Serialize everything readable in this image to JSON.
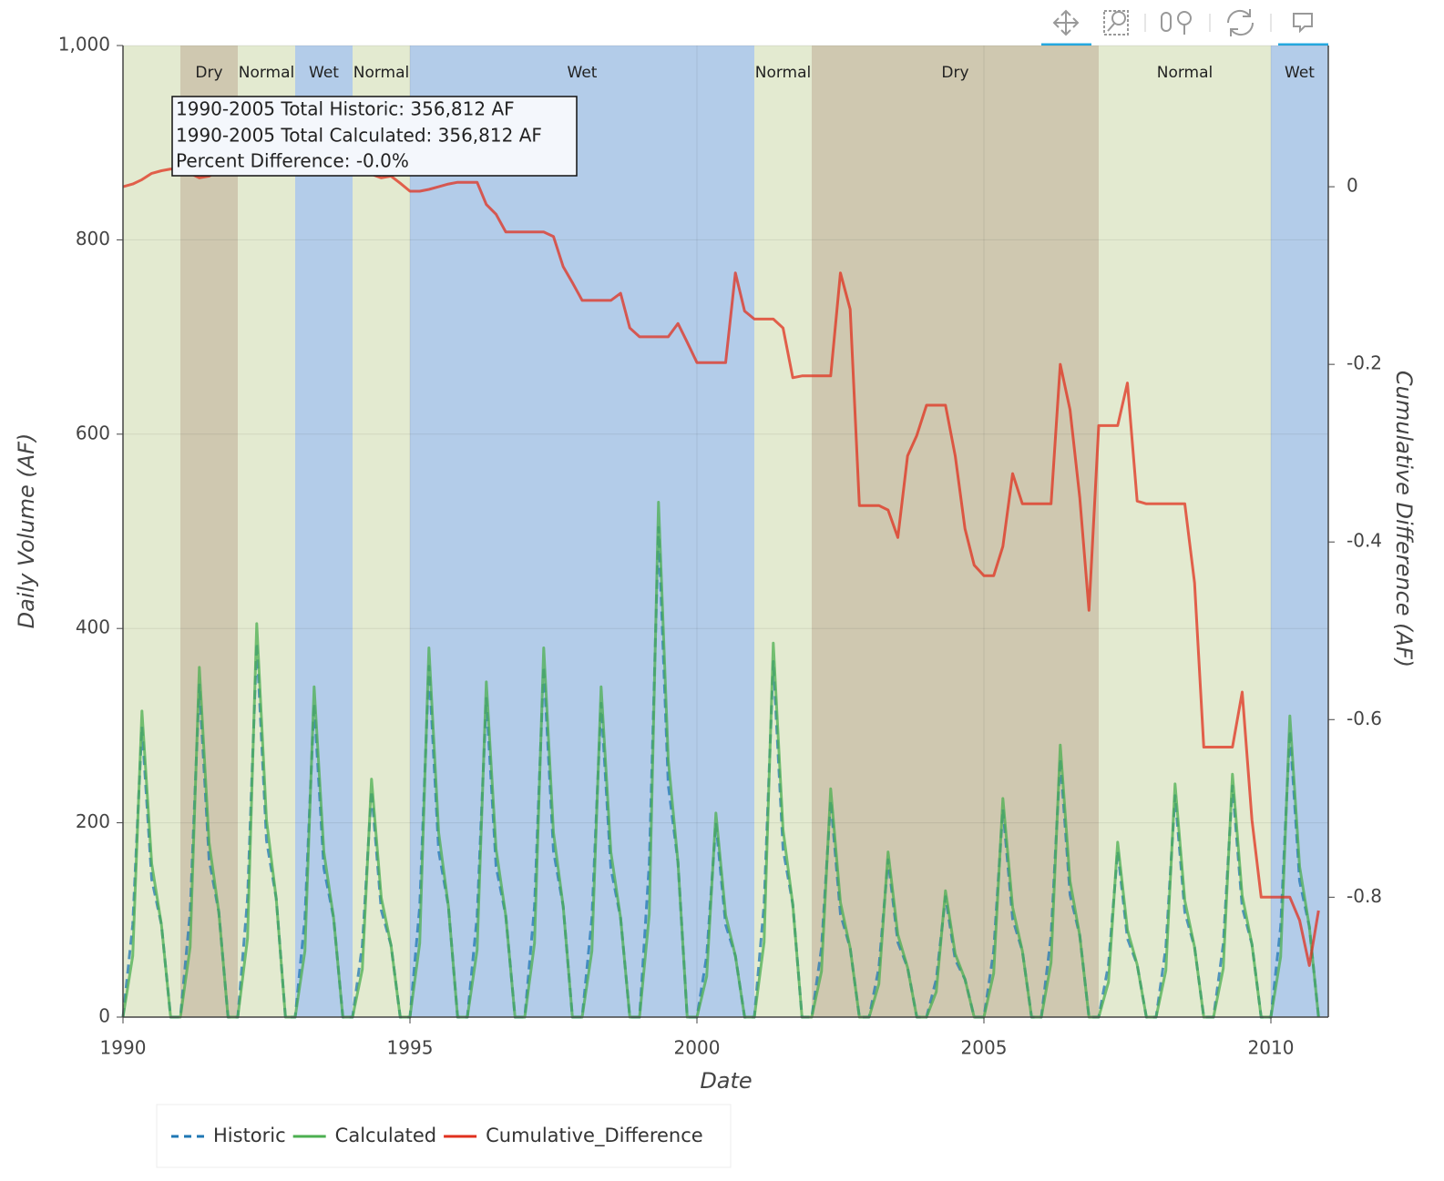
{
  "chart_data": {
    "type": "line",
    "xlabel": "Date",
    "ylabel": "Daily Volume (AF)",
    "y2label": "Cumulative Difference (AF)",
    "annotation": [
      "1990-2005 Total Historic: 356,812 AF",
      "1990-2005 Total Calculated: 356,812 AF",
      "Percent Difference: -0.0%"
    ],
    "bands": [
      {
        "x0": 1990,
        "x1": 1991,
        "label": null,
        "color": "#e3ead0"
      },
      {
        "x0": 1991,
        "x1": 1992,
        "label": "Dry",
        "color": "#cfc8b0"
      },
      {
        "x0": 1992,
        "x1": 1993,
        "label": "Normal",
        "color": "#e3ead0"
      },
      {
        "x0": 1993,
        "x1": 1994,
        "label": "Wet",
        "color": "#b3cce9"
      },
      {
        "x0": 1994,
        "x1": 1995,
        "label": "Normal",
        "color": "#e3ead0"
      },
      {
        "x0": 1995,
        "x1": 2001,
        "label": "Wet",
        "color": "#b3cce9"
      },
      {
        "x0": 2001,
        "x1": 2002,
        "label": "Normal",
        "color": "#e3ead0"
      },
      {
        "x0": 2002,
        "x1": 2007,
        "label": "Dry",
        "color": "#cfc8b0"
      },
      {
        "x0": 2007,
        "x1": 2010,
        "label": "Normal",
        "color": "#e3ead0"
      },
      {
        "x0": 2010,
        "x1": 2011,
        "label": "Wet",
        "color": "#b3cce9"
      }
    ],
    "x": [
      1990,
      1990.17,
      1990.33,
      1990.5,
      1990.67,
      1990.83,
      1991,
      1991.17,
      1991.33,
      1991.5,
      1991.67,
      1991.83,
      1992,
      1992.17,
      1992.33,
      1992.5,
      1992.67,
      1992.83,
      1993,
      1993.17,
      1993.33,
      1993.5,
      1993.67,
      1993.83,
      1994,
      1994.17,
      1994.33,
      1994.5,
      1994.67,
      1994.83,
      1995,
      1995.17,
      1995.33,
      1995.5,
      1995.67,
      1995.83,
      1996,
      1996.17,
      1996.33,
      1996.5,
      1996.67,
      1996.83,
      1997,
      1997.17,
      1997.33,
      1997.5,
      1997.67,
      1997.83,
      1998,
      1998.17,
      1998.33,
      1998.5,
      1998.67,
      1998.83,
      1999,
      1999.17,
      1999.33,
      1999.5,
      1999.67,
      1999.83,
      2000,
      2000.17,
      2000.33,
      2000.5,
      2000.67,
      2000.83,
      2001,
      2001.17,
      2001.33,
      2001.5,
      2001.67,
      2001.83,
      2002,
      2002.17,
      2002.33,
      2002.5,
      2002.67,
      2002.83,
      2003,
      2003.17,
      2003.33,
      2003.5,
      2003.67,
      2003.83,
      2004,
      2004.17,
      2004.33,
      2004.5,
      2004.67,
      2004.83,
      2005,
      2005.17,
      2005.33,
      2005.5,
      2005.67,
      2005.83,
      2006,
      2006.17,
      2006.33,
      2006.5,
      2006.67,
      2006.83,
      2007,
      2007.17,
      2007.33,
      2007.5,
      2007.67,
      2007.83,
      2008,
      2008.17,
      2008.33,
      2008.5,
      2008.67,
      2008.83,
      2009,
      2009.17,
      2009.33,
      2009.5,
      2009.67,
      2009.83,
      2010,
      2010.17,
      2010.33,
      2010.5,
      2010.67,
      2010.83
    ],
    "series": [
      {
        "name": "Historic",
        "color": "#1f77b4",
        "dash": true,
        "values": [
          0,
          95,
          299,
          142,
          95,
          0,
          0,
          108,
          342,
          162,
          108,
          0,
          0,
          122,
          385,
          182,
          122,
          0,
          0,
          102,
          323,
          153,
          102,
          0,
          0,
          74,
          233,
          110,
          74,
          0,
          0,
          114,
          361,
          171,
          114,
          0,
          0,
          104,
          328,
          155,
          104,
          0,
          0,
          114,
          361,
          171,
          114,
          0,
          0,
          102,
          323,
          153,
          102,
          0,
          0,
          159,
          504,
          239,
          159,
          0,
          0,
          63,
          200,
          95,
          63,
          0,
          0,
          116,
          366,
          173,
          116,
          0,
          0,
          71,
          223,
          106,
          71,
          0,
          0,
          51,
          162,
          77,
          51,
          0,
          0,
          39,
          124,
          59,
          39,
          0,
          0,
          68,
          214,
          101,
          68,
          0,
          0,
          84,
          266,
          126,
          84,
          0,
          0,
          54,
          171,
          81,
          54,
          0,
          0,
          72,
          228,
          108,
          72,
          0,
          0,
          75,
          238,
          113,
          75,
          0,
          0,
          93,
          295,
          140,
          93,
          0
        ]
      },
      {
        "name": "Calculated",
        "color": "#4caf50",
        "dash": false,
        "values": [
          0,
          63,
          315,
          158,
          95,
          0,
          0,
          72,
          360,
          180,
          108,
          0,
          0,
          81,
          405,
          203,
          122,
          0,
          0,
          68,
          340,
          170,
          102,
          0,
          0,
          49,
          245,
          123,
          74,
          0,
          0,
          76,
          380,
          190,
          114,
          0,
          0,
          69,
          345,
          173,
          104,
          0,
          0,
          76,
          380,
          190,
          114,
          0,
          0,
          68,
          340,
          170,
          102,
          0,
          0,
          106,
          530,
          265,
          159,
          0,
          0,
          42,
          210,
          105,
          63,
          0,
          0,
          77,
          385,
          193,
          116,
          0,
          0,
          47,
          235,
          118,
          71,
          0,
          0,
          34,
          170,
          85,
          51,
          0,
          0,
          26,
          130,
          65,
          39,
          0,
          0,
          45,
          225,
          113,
          68,
          0,
          0,
          56,
          280,
          140,
          84,
          0,
          0,
          36,
          180,
          90,
          54,
          0,
          0,
          48,
          240,
          120,
          72,
          0,
          0,
          50,
          250,
          125,
          75,
          0,
          0,
          62,
          310,
          155,
          93,
          0
        ]
      },
      {
        "name": "Cumulative_Difference",
        "color": "#e0301e",
        "dash": false,
        "axis": "y2",
        "values": [
          0,
          0.003,
          0.008,
          0.015,
          0.018,
          0.02,
          0.02,
          0.015,
          0.01,
          0.012,
          0.018,
          0.024,
          0.026,
          0.03,
          0.038,
          0.041,
          0.04,
          0.038,
          0.036,
          0.034,
          0.03,
          0.026,
          0.024,
          0.022,
          0.02,
          0.018,
          0.014,
          0.01,
          0.012,
          0.004,
          -0.005,
          -0.005,
          -0.003,
          0,
          0.003,
          0.005,
          0.005,
          0.005,
          -0.02,
          -0.031,
          -0.051,
          -0.051,
          -0.051,
          -0.051,
          -0.051,
          -0.056,
          -0.09,
          -0.108,
          -0.128,
          -0.128,
          -0.128,
          -0.128,
          -0.12,
          -0.159,
          -0.169,
          -0.169,
          -0.169,
          -0.169,
          -0.154,
          -0.175,
          -0.198,
          -0.198,
          -0.198,
          -0.198,
          -0.097,
          -0.14,
          -0.149,
          -0.149,
          -0.149,
          -0.159,
          -0.215,
          -0.213,
          -0.213,
          -0.213,
          -0.213,
          -0.097,
          -0.138,
          -0.359,
          -0.359,
          -0.359,
          -0.364,
          -0.395,
          -0.303,
          -0.28,
          -0.246,
          -0.246,
          -0.246,
          -0.303,
          -0.385,
          -0.426,
          -0.438,
          -0.438,
          -0.405,
          -0.323,
          -0.357,
          -0.357,
          -0.357,
          -0.357,
          -0.2,
          -0.251,
          -0.35,
          -0.477,
          -0.269,
          -0.269,
          -0.269,
          -0.221,
          -0.354,
          -0.357,
          -0.357,
          -0.357,
          -0.357,
          -0.357,
          -0.446,
          -0.631,
          -0.631,
          -0.631,
          -0.631,
          -0.569,
          -0.713,
          -0.8,
          -0.8,
          -0.8,
          -0.8,
          -0.826,
          -0.877,
          -0.815
        ]
      }
    ],
    "xlim": [
      1990,
      2011
    ],
    "xticks": [
      1990,
      1995,
      2000,
      2005,
      2010
    ],
    "ylim": [
      0,
      1000
    ],
    "yticks": [
      0,
      200,
      400,
      600,
      800,
      {
        "value": 1000,
        "label": "1,000"
      }
    ],
    "y2lim": [
      -0.935,
      0.159
    ],
    "y2ticks": [
      -0.8,
      -0.6,
      -0.4,
      -0.2,
      0
    ],
    "grid": true
  }
}
